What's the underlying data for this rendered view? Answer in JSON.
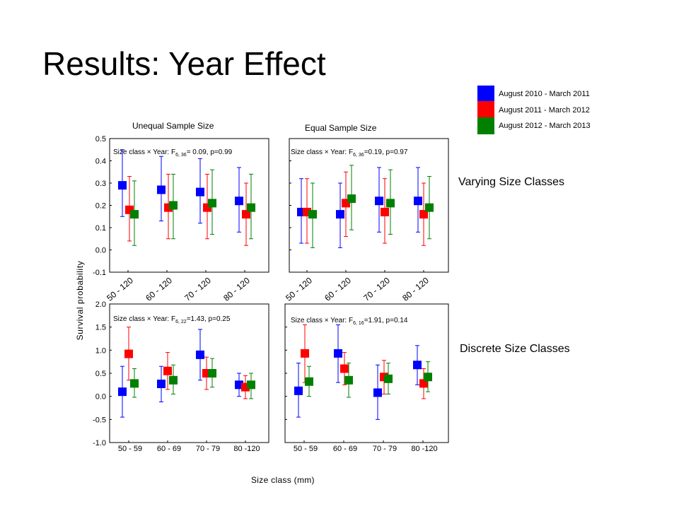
{
  "slide": {
    "title": "Results: Year Effect"
  },
  "legend": [
    {
      "label": "August 2010 - March 2011",
      "color": "#0000ff"
    },
    {
      "label": "August 2011 - March 2012",
      "color": "#ff0000"
    },
    {
      "label": "August 2012 - March 2013",
      "color": "#008000"
    }
  ],
  "headings": {
    "unequal": "Unequal Sample Size",
    "equal": "Equal Sample Size"
  },
  "row_labels": {
    "varying": "Varying Size Classes",
    "discrete": "Discrete Size Classes"
  },
  "axes": {
    "ylabel": "Survival probability",
    "xlabel": "Size class (mm)"
  },
  "chart_data": [
    {
      "type": "scatter",
      "panel": "top-left",
      "title": "Unequal Sample Size",
      "annotation": {
        "pre": "Size class × Year: F",
        "sub": "6, 36",
        "post": "= 0.09, p=0.99"
      },
      "categories": [
        "50 - 120",
        "60 - 120",
        "70 - 120",
        "80 - 120"
      ],
      "ylim": [
        -0.1,
        0.5
      ],
      "yticks": [
        "0.5",
        "0.4",
        "0.3",
        "0.2",
        "0.1",
        "0.0",
        "-0.1"
      ],
      "series": [
        {
          "name": "August 2010 - March 2011",
          "values": [
            0.29,
            0.27,
            0.26,
            0.22
          ],
          "lower": [
            0.15,
            0.13,
            0.12,
            0.08
          ],
          "upper": [
            0.45,
            0.42,
            0.41,
            0.37
          ]
        },
        {
          "name": "August 2011 - March 2012",
          "values": [
            0.18,
            0.19,
            0.19,
            0.16
          ],
          "lower": [
            0.04,
            0.05,
            0.05,
            0.02
          ],
          "upper": [
            0.33,
            0.34,
            0.34,
            0.3
          ]
        },
        {
          "name": "August 2012 - March 2013",
          "values": [
            0.16,
            0.2,
            0.21,
            0.19
          ],
          "lower": [
            0.02,
            0.05,
            0.07,
            0.05
          ],
          "upper": [
            0.31,
            0.34,
            0.36,
            0.34
          ]
        }
      ]
    },
    {
      "type": "scatter",
      "panel": "top-right",
      "title": "Equal Sample Size",
      "annotation": {
        "pre": "Size class × Year: F",
        "sub": "6, 36",
        "post": "=0.19, p=0.97"
      },
      "categories": [
        "50 - 120",
        "60 - 120",
        "70 - 120",
        "80 - 120"
      ],
      "ylim": [
        -0.1,
        0.5
      ],
      "yticks": [],
      "series": [
        {
          "name": "August 2010 - March 2011",
          "values": [
            0.17,
            0.16,
            0.22,
            0.22
          ],
          "lower": [
            0.03,
            0.01,
            0.08,
            0.08
          ],
          "upper": [
            0.32,
            0.3,
            0.37,
            0.37
          ]
        },
        {
          "name": "August 2011 - March 2012",
          "values": [
            0.17,
            0.21,
            0.17,
            0.16
          ],
          "lower": [
            0.03,
            0.06,
            0.03,
            0.02
          ],
          "upper": [
            0.32,
            0.35,
            0.32,
            0.3
          ]
        },
        {
          "name": "August 2012 - March 2013",
          "values": [
            0.16,
            0.23,
            0.21,
            0.19
          ],
          "lower": [
            0.01,
            0.09,
            0.07,
            0.05
          ],
          "upper": [
            0.3,
            0.38,
            0.36,
            0.33
          ]
        }
      ]
    },
    {
      "type": "scatter",
      "panel": "bottom-left",
      "annotation": {
        "pre": "Size class × Year: F",
        "sub": "6, 22",
        "post": "=1.43, p=0.25"
      },
      "categories": [
        "50 - 59",
        "60 - 69",
        "70 - 79",
        "80 -120"
      ],
      "ylim": [
        -1.0,
        2.0
      ],
      "yticks": [
        "2.0",
        "1.5",
        "1.0",
        "0.5",
        "0.0",
        "-0.5",
        "-1.0"
      ],
      "series": [
        {
          "name": "August 2010 - March 2011",
          "values": [
            0.1,
            0.27,
            0.9,
            0.25
          ],
          "lower": [
            -0.45,
            -0.12,
            0.35,
            0.0
          ],
          "upper": [
            0.65,
            0.65,
            1.45,
            0.5
          ]
        },
        {
          "name": "August 2011 - March 2012",
          "values": [
            0.92,
            0.55,
            0.5,
            0.2
          ],
          "lower": [
            0.35,
            0.15,
            0.15,
            -0.05
          ],
          "upper": [
            1.5,
            0.95,
            0.85,
            0.45
          ]
        },
        {
          "name": "August 2012 - March 2013",
          "values": [
            0.28,
            0.35,
            0.5,
            0.25
          ],
          "lower": [
            -0.02,
            0.05,
            0.2,
            -0.05
          ],
          "upper": [
            0.6,
            0.68,
            0.82,
            0.5
          ]
        }
      ]
    },
    {
      "type": "scatter",
      "panel": "bottom-right",
      "annotation": {
        "pre": "Size class × Year: F",
        "sub": "6, 16",
        "post": "=1.91, p=0.14"
      },
      "categories": [
        "50 - 59",
        "60 - 69",
        "70 - 79",
        "80 -120"
      ],
      "ylim": [
        -1.0,
        2.0
      ],
      "yticks": [],
      "series": [
        {
          "name": "August 2010 - March 2011",
          "values": [
            0.12,
            0.93,
            0.08,
            0.68
          ],
          "lower": [
            -0.45,
            0.3,
            -0.5,
            0.25
          ],
          "upper": [
            0.72,
            1.55,
            0.68,
            1.1
          ]
        },
        {
          "name": "August 2011 - March 2012",
          "values": [
            0.93,
            0.6,
            0.42,
            0.28
          ],
          "lower": [
            0.3,
            0.25,
            0.05,
            -0.05
          ],
          "upper": [
            1.55,
            0.95,
            0.78,
            0.6
          ]
        },
        {
          "name": "August 2012 - March 2013",
          "values": [
            0.32,
            0.35,
            0.38,
            0.42
          ],
          "lower": [
            0.0,
            -0.02,
            0.05,
            0.1
          ],
          "upper": [
            0.65,
            0.72,
            0.72,
            0.75
          ]
        }
      ]
    }
  ]
}
